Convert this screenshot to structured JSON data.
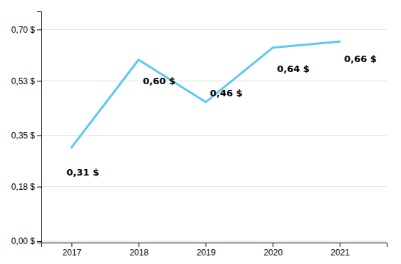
{
  "chart_data": {
    "type": "line",
    "x": [
      2017,
      2018,
      2019,
      2020,
      2021
    ],
    "values": [
      0.31,
      0.6,
      0.46,
      0.64,
      0.66
    ],
    "value_labels": [
      "0,31 $",
      "0,60 $",
      "0,46 $",
      "0,64 $",
      "0,66 $"
    ],
    "color": "#5bc8f5",
    "xlim": [
      2016.55,
      2021.7
    ],
    "xticks": [
      2017,
      2018,
      2019,
      2020,
      2021
    ],
    "ylim": [
      -0.005,
      0.76
    ],
    "yticks": [
      {
        "value": 0.0,
        "label": "0,00 $"
      },
      {
        "value": 0.18,
        "label": "0,18 $"
      },
      {
        "value": 0.35,
        "label": "0,35 $"
      },
      {
        "value": 0.53,
        "label": "0,53 $"
      },
      {
        "value": 0.7,
        "label": "0,70 $"
      }
    ],
    "grid": true,
    "data_labels": true
  }
}
